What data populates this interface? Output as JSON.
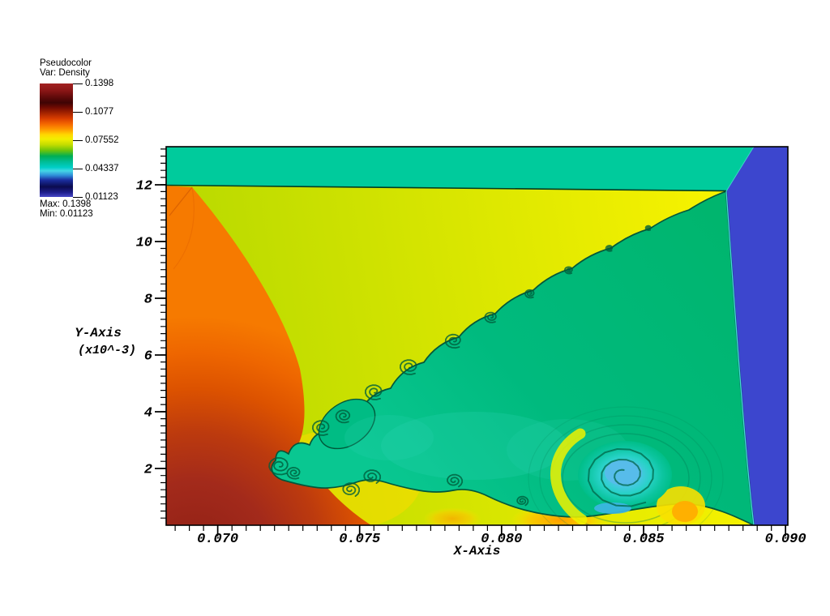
{
  "legend": {
    "title": "Pseudocolor",
    "subtitle": "Var: Density",
    "ticks": [
      "0.1398",
      "0.1077",
      "0.07552",
      "0.04337",
      "0.01123"
    ],
    "max_label": "Max: 0.1398",
    "min_label": "Min: 0.01123"
  },
  "axes": {
    "x": {
      "label": "X-Axis",
      "ticks": [
        "0.070",
        "0.075",
        "0.080",
        "0.085",
        "0.090"
      ]
    },
    "y": {
      "label": "Y-Axis",
      "scale": "(x10^-3)",
      "ticks": [
        "12",
        "10",
        "8",
        "6",
        "4",
        "2"
      ]
    }
  },
  "chart_data": {
    "type": "heatmap",
    "subtype": "pseudocolor-cfd-density-field",
    "variable": "Density",
    "xlabel": "X-Axis",
    "ylabel": "Y-Axis",
    "y_scale_note": "(x10^-3)",
    "xlim": [
      0.0682,
      0.0901
    ],
    "ylim": [
      0,
      13.3
    ],
    "x_major_ticks": [
      0.07,
      0.075,
      0.08,
      0.085,
      0.09
    ],
    "x_minor_step": 0.0005,
    "y_major_ticks": [
      2,
      4,
      6,
      8,
      10,
      12
    ],
    "y_minor_step": 0.25,
    "grid": false,
    "colorbar": {
      "title": "Pseudocolor",
      "variable": "Density",
      "tick_values": [
        0.1398,
        0.1077,
        0.07552,
        0.04337,
        0.01123
      ],
      "max": 0.1398,
      "min": 0.01123,
      "gradient_top_to_bottom": [
        "#A22121",
        "#3F0404",
        "#A42300",
        "#F56A00",
        "#FFD700",
        "#F2EE00",
        "#C3DC00",
        "#00AE54",
        "#00BD96",
        "#00CFC7",
        "#45D5E6",
        "#2E8ED8",
        "#1B2FA0",
        "#0B0B4E",
        "#4848C8"
      ]
    },
    "regions": [
      {
        "name": "top-post-shock-band",
        "color": "#00CB9C",
        "approx_density": 0.05,
        "extent": "full width strip, y=12.0 to 13.3"
      },
      {
        "name": "incident-shock-wedge",
        "color": "#D8E600",
        "approx_density": 0.076,
        "extent": "between top band and slip line, x=0.069 to 0.0879"
      },
      {
        "name": "bow-shock-lobe-left",
        "color": "#EE6600",
        "approx_density": 0.105,
        "extent": "curved lobe on left, x<0.0735"
      },
      {
        "name": "high-density-core-bottom-left",
        "color": "#9B2318",
        "approx_density": 0.135,
        "extent": "bottom-left corner blob"
      },
      {
        "name": "slip-line-jet",
        "color": "#00BA7E",
        "approx_density": 0.056,
        "extent": "triangular jet from triple point at (0.0879, 11.8) down-left to (0.0722, 2.4), Kelvin-Helmholtz rollups along edges"
      },
      {
        "name": "bottom-wall-band",
        "color": "#F0E800",
        "approx_density": 0.08,
        "extent": "yellow strip along y=0 with orange hot spots"
      },
      {
        "name": "wall-vortex",
        "color": "#57BCEA",
        "approx_density": 0.032,
        "extent": "large vortex with cyan/blue core near (0.0843, 1.6)"
      },
      {
        "name": "undisturbed-right-band",
        "color": "#3C46CE",
        "approx_density": 0.014,
        "extent": "vertical band x>0.0888"
      }
    ],
    "notable_points": [
      {
        "name": "triple-point",
        "x": 0.0879,
        "y_times_1e3": 11.8
      }
    ]
  }
}
